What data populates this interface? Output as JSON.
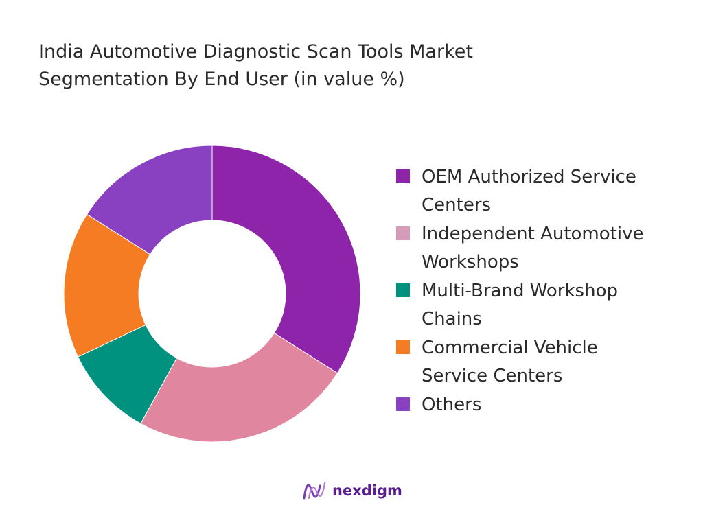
{
  "title_lines": [
    "India Automotive Diagnostic Scan Tools Market",
    "Segmentation By End User (in value %)"
  ],
  "chart_data": {
    "type": "pie",
    "style": "donut",
    "title": "India Automotive Diagnostic Scan Tools Market Segmentation By End User (in value %)",
    "categories": [
      "OEM Authorized Service Centers",
      "Independent Automotive Workshops",
      "Multi-Brand Workshop Chains",
      "Commercial Vehicle Service Centers",
      "Others"
    ],
    "values": [
      34,
      24,
      10,
      16,
      16
    ],
    "colors": [
      "#8e24aa",
      "#e0879f",
      "#00917f",
      "#f57c22",
      "#8a41c1"
    ],
    "legend_swatch_colors": [
      "#8e24aa",
      "#d79bba",
      "#00917f",
      "#f57c22",
      "#8a41c1"
    ],
    "legend_position": "right",
    "start_angle": "top, clockwise",
    "legend_labels": [
      "OEM Authorized Service\nCenters",
      "Independent Automotive\nWorkshops",
      "Multi-Brand Workshop\nChains",
      "Commercial Vehicle\nService Centers",
      "Others"
    ]
  },
  "logo": {
    "text": "nexdigm",
    "icon": "nexdigm-wave-logo-icon",
    "color": "#5a1e8f"
  }
}
